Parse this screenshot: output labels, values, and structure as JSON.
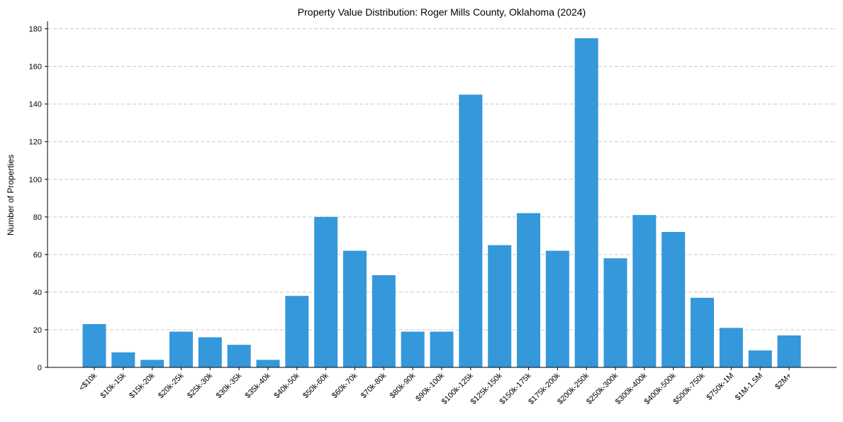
{
  "chart_data": {
    "type": "bar",
    "title": "Property Value Distribution: Roger Mills County, Oklahoma (2024)",
    "xlabel": "",
    "ylabel": "Number of Properties",
    "ylim": [
      0,
      184
    ],
    "yticks": [
      0,
      20,
      40,
      60,
      80,
      100,
      120,
      140,
      160,
      180
    ],
    "grid": "y-dashed",
    "bar_color": "#3498db",
    "categories": [
      "<$10k",
      "$10k-15k",
      "$15k-20k",
      "$20k-25k",
      "$25k-30k",
      "$30k-35k",
      "$35k-40k",
      "$40k-50k",
      "$50k-60k",
      "$60k-70k",
      "$70k-80k",
      "$80k-90k",
      "$90k-100k",
      "$100k-125k",
      "$125k-150k",
      "$150k-175k",
      "$175k-200k",
      "$200k-250k",
      "$250k-300k",
      "$300k-400k",
      "$400k-500k",
      "$500k-750k",
      "$750k-1M",
      "$1M-1.5M",
      "$2M+"
    ],
    "values": [
      23,
      8,
      4,
      19,
      16,
      12,
      4,
      38,
      80,
      62,
      49,
      19,
      19,
      145,
      65,
      82,
      62,
      175,
      58,
      81,
      72,
      37,
      21,
      9,
      17
    ]
  }
}
